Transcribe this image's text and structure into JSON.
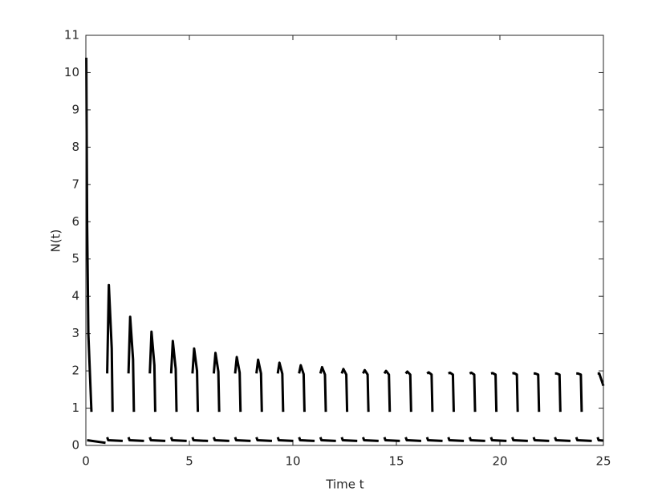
{
  "chart_data": {
    "type": "line",
    "xlabel": "Time t",
    "ylabel": "N(t)",
    "xlim": [
      0,
      25
    ],
    "xticks": [
      0,
      5,
      10,
      15,
      20,
      25
    ],
    "ylim": [
      0,
      11
    ],
    "yticks": [
      0,
      1,
      2,
      3,
      4,
      5,
      6,
      7,
      8,
      9,
      10,
      11
    ],
    "grid": false,
    "series": [
      {
        "color": "#000000",
        "style": "solid",
        "x": [
          0.02,
          0.06,
          0.12,
          0.27,
          null,
          1.03,
          1.11,
          1.25,
          1.29,
          null,
          2.06,
          2.14,
          2.28,
          2.32,
          null,
          3.09,
          3.17,
          3.31,
          3.35,
          null,
          4.12,
          4.2,
          4.34,
          4.38,
          null,
          5.15,
          5.23,
          5.37,
          5.41,
          null,
          6.18,
          6.26,
          6.4,
          6.44,
          null,
          7.21,
          7.29,
          7.43,
          7.47,
          null,
          8.24,
          8.32,
          8.46,
          8.5,
          null,
          9.27,
          9.35,
          9.49,
          9.53,
          null,
          10.3,
          10.38,
          10.52,
          10.56,
          null,
          11.33,
          11.41,
          11.55,
          11.59,
          null,
          12.36,
          12.44,
          12.58,
          12.62,
          null,
          13.39,
          13.47,
          13.61,
          13.65,
          null,
          14.42,
          14.5,
          14.64,
          14.68,
          null,
          15.45,
          15.53,
          15.67,
          15.71,
          null,
          16.48,
          16.56,
          16.7,
          16.74,
          null,
          17.51,
          17.59,
          17.73,
          17.77,
          null,
          18.54,
          18.62,
          18.76,
          18.8,
          null,
          19.57,
          19.65,
          19.79,
          19.83,
          null,
          20.6,
          20.68,
          20.82,
          20.86,
          null,
          21.63,
          21.71,
          21.85,
          21.89,
          null,
          22.66,
          22.74,
          22.88,
          22.92,
          null,
          23.69,
          23.77,
          23.91,
          23.95,
          null,
          24.72,
          24.8,
          25
        ],
        "values": [
          10.4,
          6,
          3,
          0.9,
          null,
          1.93,
          4.3,
          2.6,
          0.9,
          null,
          1.93,
          3.45,
          2.3,
          0.9,
          null,
          1.93,
          3.05,
          2.15,
          0.9,
          null,
          1.93,
          2.8,
          2.05,
          0.9,
          null,
          1.93,
          2.6,
          2.0,
          0.9,
          null,
          1.93,
          2.48,
          1.98,
          0.9,
          null,
          1.93,
          2.37,
          1.95,
          0.9,
          null,
          1.93,
          2.3,
          1.93,
          0.9,
          null,
          1.93,
          2.22,
          1.92,
          0.9,
          null,
          1.93,
          2.15,
          1.91,
          0.9,
          null,
          1.93,
          2.1,
          1.9,
          0.9,
          null,
          1.93,
          2.05,
          1.9,
          0.9,
          null,
          1.93,
          2.02,
          1.9,
          0.9,
          null,
          1.93,
          2.0,
          1.9,
          0.9,
          null,
          1.93,
          1.98,
          1.9,
          0.9,
          null,
          1.93,
          1.96,
          1.9,
          0.9,
          null,
          1.93,
          1.95,
          1.9,
          0.9,
          null,
          1.93,
          1.95,
          1.9,
          0.9,
          null,
          1.93,
          1.94,
          1.9,
          0.9,
          null,
          1.93,
          1.94,
          1.9,
          0.9,
          null,
          1.93,
          1.93,
          1.9,
          0.9,
          null,
          1.93,
          1.93,
          1.9,
          0.9,
          null,
          1.93,
          1.93,
          1.9,
          0.9,
          null,
          1.93,
          1.93,
          1.6
        ]
      },
      {
        "color": "#000000",
        "style": "dashed",
        "x": [
          0.06,
          0.95,
          null,
          1.03,
          1.08,
          1.78,
          null,
          2.06,
          2.11,
          2.81,
          null,
          3.09,
          3.14,
          3.84,
          null,
          4.12,
          4.17,
          4.87,
          null,
          5.15,
          5.2,
          5.9,
          null,
          6.18,
          6.23,
          6.93,
          null,
          7.21,
          7.26,
          7.96,
          null,
          8.24,
          8.29,
          8.99,
          null,
          9.27,
          9.32,
          10.02,
          null,
          10.3,
          10.35,
          11.05,
          null,
          11.33,
          11.38,
          12.08,
          null,
          12.36,
          12.41,
          13.11,
          null,
          13.39,
          13.44,
          14.14,
          null,
          14.42,
          14.47,
          15.17,
          null,
          15.45,
          15.5,
          16.2,
          null,
          16.48,
          16.53,
          17.23,
          null,
          17.51,
          17.56,
          18.26,
          null,
          18.54,
          18.59,
          19.29,
          null,
          19.57,
          19.62,
          20.32,
          null,
          20.6,
          20.65,
          21.35,
          null,
          21.63,
          21.68,
          22.38,
          null,
          22.66,
          22.71,
          23.41,
          null,
          23.69,
          23.74,
          24.44,
          null,
          24.72,
          24.77,
          25
        ],
        "values": [
          0.14,
          0.07,
          null,
          0.22,
          0.14,
          0.12,
          null,
          0.22,
          0.14,
          0.12,
          null,
          0.22,
          0.14,
          0.12,
          null,
          0.22,
          0.14,
          0.12,
          null,
          0.22,
          0.14,
          0.12,
          null,
          0.22,
          0.14,
          0.12,
          null,
          0.22,
          0.14,
          0.12,
          null,
          0.22,
          0.14,
          0.12,
          null,
          0.22,
          0.14,
          0.12,
          null,
          0.22,
          0.14,
          0.12,
          null,
          0.22,
          0.14,
          0.12,
          null,
          0.22,
          0.14,
          0.12,
          null,
          0.22,
          0.14,
          0.12,
          null,
          0.22,
          0.14,
          0.12,
          null,
          0.22,
          0.14,
          0.12,
          null,
          0.22,
          0.14,
          0.12,
          null,
          0.22,
          0.14,
          0.12,
          null,
          0.22,
          0.14,
          0.12,
          null,
          0.22,
          0.14,
          0.12,
          null,
          0.22,
          0.14,
          0.12,
          null,
          0.22,
          0.14,
          0.12,
          null,
          0.22,
          0.14,
          0.12,
          null,
          0.22,
          0.14,
          0.12,
          null,
          0.22,
          0.14,
          0.13
        ]
      }
    ]
  }
}
